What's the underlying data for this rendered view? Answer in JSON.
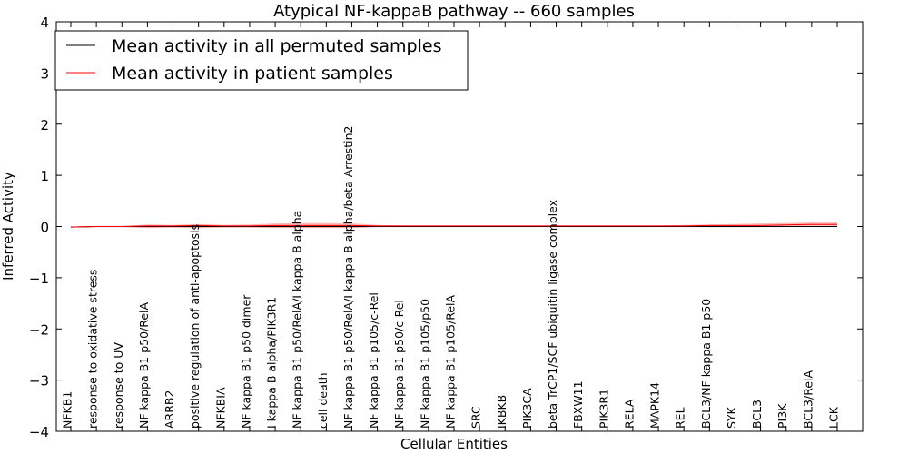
{
  "chart_data": {
    "type": "line",
    "title": "Atypical NF-kappaB pathway -- 660 samples",
    "xlabel": "Cellular Entities",
    "ylabel": "Inferred Activity",
    "ylim": [
      -4,
      4
    ],
    "yticks": [
      "−4",
      "−3",
      "−2",
      "−1",
      "0",
      "1",
      "2",
      "3",
      "4"
    ],
    "ytick_values": [
      -4,
      -3,
      -2,
      -1,
      0,
      1,
      2,
      3,
      4
    ],
    "grid": false,
    "legend_placement": "top-left",
    "categories": [
      "NFKB1",
      "response to oxidative stress",
      "response to UV",
      "NF kappa B1 p50/RelA",
      "ARRB2",
      "positive regulation of anti-apoptosis",
      "NFKBIA",
      "NF kappa B1 p50 dimer",
      "I kappa B alpha/PIK3R1",
      "NF kappa B1 p50/RelA/I kappa B alpha",
      "cell death",
      "NF kappa B1 p50/RelA/I kappa B alpha/beta Arrestin2",
      "NF kappa B1 p105/c-Rel",
      "NF kappa B1 p50/c-Rel",
      "NF kappa B1 p105/p50",
      "NF kappa B1 p105/RelA",
      "SRC",
      "IKBKB",
      "PIK3CA",
      "beta TrCP1/SCF ubiquitin ligase complex",
      "FBXW11",
      "PIK3R1",
      "RELA",
      "MAPK14",
      "REL",
      "BCL3/NF kappa B1 p50",
      "SYK",
      "BCL3",
      "PI3K",
      "BCL3/RelA",
      "LCK"
    ],
    "series": [
      {
        "name": "Mean activity in all permuted samples",
        "color": "#000000",
        "values": [
          -0.01,
          0,
          0,
          0,
          0,
          0,
          0,
          0,
          0,
          0,
          0,
          0,
          0,
          0,
          0,
          0,
          0,
          0,
          0,
          0,
          0,
          0,
          0,
          0,
          0,
          0,
          0,
          0,
          0,
          0,
          0
        ],
        "band_lower": [
          -0.02,
          -0.01,
          -0.01,
          -0.02,
          -0.02,
          -0.02,
          -0.02,
          -0.02,
          -0.02,
          -0.02,
          -0.02,
          -0.02,
          -0.01,
          -0.01,
          -0.01,
          -0.01,
          -0.01,
          -0.01,
          -0.01,
          -0.01,
          -0.01,
          -0.01,
          -0.01,
          -0.01,
          -0.01,
          -0.01,
          -0.01,
          -0.01,
          -0.01,
          -0.01,
          -0.01
        ],
        "band_upper": [
          0.0,
          0.01,
          0.01,
          0.02,
          0.02,
          0.02,
          0.02,
          0.02,
          0.02,
          0.02,
          0.02,
          0.02,
          0.01,
          0.01,
          0.01,
          0.01,
          0.01,
          0.01,
          0.01,
          0.01,
          0.01,
          0.01,
          0.01,
          0.01,
          0.01,
          0.01,
          0.01,
          0.01,
          0.01,
          0.01,
          0.01
        ]
      },
      {
        "name": "Mean activity in patient samples",
        "color": "#ff0000",
        "values": [
          -0.01,
          0,
          0,
          0.01,
          0.01,
          0.02,
          0.01,
          0.01,
          0.02,
          0.02,
          0.02,
          0.02,
          0.01,
          0.01,
          0.01,
          0.01,
          0.01,
          0.01,
          0.01,
          0.01,
          0.01,
          0.01,
          0.01,
          0.01,
          0.01,
          0.02,
          0.02,
          0.02,
          0.03,
          0.04,
          0.04
        ],
        "band_lower": [
          -0.02,
          -0.01,
          -0.01,
          -0.03,
          -0.02,
          -0.03,
          -0.02,
          -0.02,
          -0.03,
          -0.03,
          -0.03,
          -0.03,
          -0.01,
          -0.01,
          -0.01,
          -0.01,
          -0.01,
          -0.01,
          -0.01,
          -0.01,
          -0.01,
          -0.01,
          -0.01,
          -0.01,
          -0.01,
          -0.01,
          -0.01,
          -0.01,
          0.0,
          0.01,
          0.01
        ],
        "band_upper": [
          0.0,
          0.01,
          0.01,
          0.04,
          0.03,
          0.05,
          0.03,
          0.04,
          0.06,
          0.07,
          0.07,
          0.06,
          0.03,
          0.02,
          0.02,
          0.02,
          0.02,
          0.02,
          0.02,
          0.02,
          0.02,
          0.02,
          0.02,
          0.02,
          0.03,
          0.04,
          0.05,
          0.06,
          0.07,
          0.08,
          0.08
        ]
      }
    ]
  }
}
